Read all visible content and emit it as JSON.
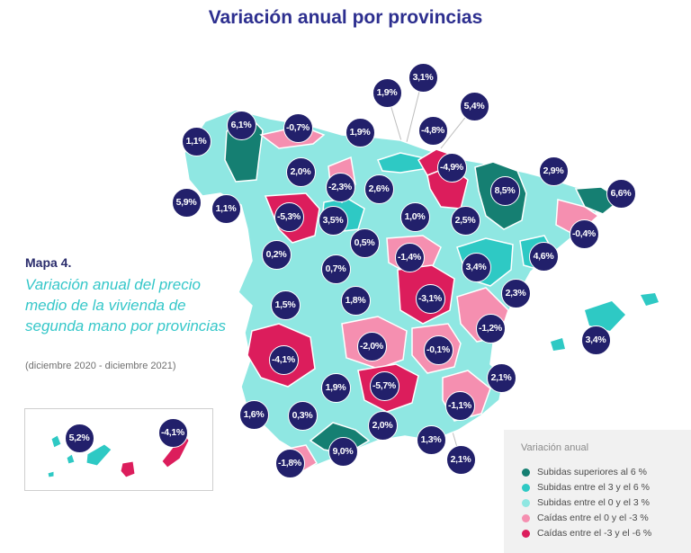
{
  "title": "Variación anual por provincias",
  "side_panel": {
    "map_label": "Mapa 4.",
    "description": "Variación anual del precio medio de la vivienda de segunda mano por provincias",
    "period": "(diciembre 2020 - diciembre 2021)"
  },
  "colors": {
    "dark_teal": "#157f72",
    "teal": "#2ec9c4",
    "light_teal": "#8fe7e2",
    "pink": "#f58fb0",
    "crimson": "#dc1d5c",
    "badge": "#22206b",
    "title": "#2d2f8f"
  },
  "legend": {
    "title": "Variación anual",
    "items": [
      {
        "label": "Subidas superiores al 6 %",
        "color": "#157f72"
      },
      {
        "label": "Subidas entre el 3 y el 6 %",
        "color": "#2ec9c4"
      },
      {
        "label": "Subidas entre el 0 y el 3 %",
        "color": "#8fe7e2"
      },
      {
        "label": "Caídas entre el 0 y el -3 %",
        "color": "#f58fb0"
      },
      {
        "label": "Caídas entre el -3 y el -6 %",
        "color": "#dc1d5c"
      }
    ]
  },
  "badges": [
    "3,1%",
    "1,9%",
    "5,4%",
    "-4,8%",
    "6,1%",
    "-0,7%",
    "1,9%",
    "1,1%",
    "2,0%",
    "-4,9%",
    "2,9%",
    "-2,3%",
    "2,6%",
    "8,5%",
    "5,9%",
    "1,1%",
    "-5,3%",
    "3,5%",
    "1,0%",
    "2,5%",
    "6,6%",
    "-0,4%",
    "0,5%",
    "0,2%",
    "-1,4%",
    "0,7%",
    "3,4%",
    "4,6%",
    "-3,1%",
    "1,8%",
    "1,5%",
    "2,3%",
    "-1,2%",
    "-2,0%",
    "-0,1%",
    "3,4%",
    "-4,1%",
    "1,9%",
    "-5,7%",
    "2,1%",
    "-1,1%",
    "1,6%",
    "0,3%",
    "2,0%",
    "5,2%",
    "-4,1%",
    "1,3%",
    "9,0%",
    "-1,8%",
    "2,1%"
  ]
}
